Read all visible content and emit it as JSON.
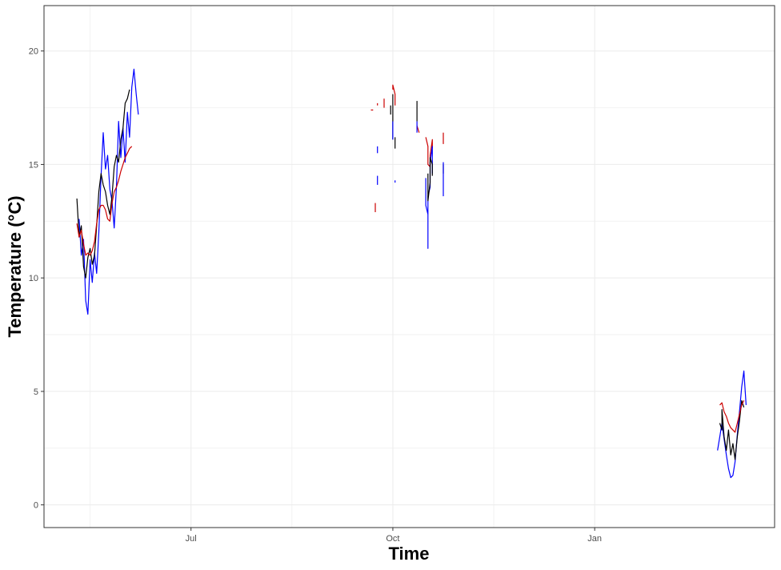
{
  "chart_data": {
    "type": "line",
    "title": "",
    "xlabel": "Time",
    "ylabel": "Temperature (°C)",
    "ylim": [
      -1,
      22
    ],
    "xlim": [
      "2019-04-25",
      "2020-03-23"
    ],
    "x_ticks": [
      {
        "date": "2019-07-01",
        "label": "Jul"
      },
      {
        "date": "2019-10-01",
        "label": "Oct"
      },
      {
        "date": "2020-01-01",
        "label": "Jan"
      }
    ],
    "x_minor_ticks": [
      "2019-05-16",
      "2019-08-16",
      "2019-11-16"
    ],
    "y_ticks": [
      0,
      5,
      10,
      15,
      20
    ],
    "y_minor_ticks": [
      2.5,
      7.5,
      12.5,
      17.5
    ],
    "grid": true,
    "legend": "none",
    "colors": {
      "blue_series": "#0000ff",
      "black_series": "#000000",
      "red_series": "#cc0000"
    },
    "series": [
      {
        "color": "blue",
        "points": [
          [
            "2019-05-11",
            12.6
          ],
          [
            "2019-05-12",
            11.0
          ],
          [
            "2019-05-13",
            11.7
          ],
          [
            "2019-05-14",
            9.0
          ],
          [
            "2019-05-15",
            8.4
          ],
          [
            "2019-05-16",
            10.8
          ],
          [
            "2019-05-17",
            9.8
          ],
          [
            "2019-05-18",
            11.1
          ],
          [
            "2019-05-19",
            10.2
          ],
          [
            "2019-05-20",
            12.0
          ],
          [
            "2019-05-21",
            14.5
          ],
          [
            "2019-05-22",
            16.4
          ],
          [
            "2019-05-23",
            14.8
          ],
          [
            "2019-05-24",
            15.4
          ],
          [
            "2019-05-25",
            13.9
          ],
          [
            "2019-05-26",
            13.4
          ],
          [
            "2019-05-27",
            12.2
          ],
          [
            "2019-05-28",
            14.0
          ],
          [
            "2019-05-29",
            16.9
          ],
          [
            "2019-05-30",
            15.3
          ],
          [
            "2019-05-31",
            16.6
          ],
          [
            "2019-06-01",
            15.1
          ],
          [
            "2019-06-02",
            17.3
          ],
          [
            "2019-06-03",
            16.2
          ],
          [
            "2019-06-04",
            18.4
          ],
          [
            "2019-06-05",
            19.2
          ],
          [
            "2019-06-06",
            18.1
          ],
          [
            "2019-06-07",
            17.2
          ]
        ]
      },
      {
        "color": "black",
        "points": [
          [
            "2019-05-10",
            13.5
          ],
          [
            "2019-05-11",
            11.8
          ],
          [
            "2019-05-12",
            12.3
          ],
          [
            "2019-05-13",
            10.5
          ],
          [
            "2019-05-14",
            10.0
          ],
          [
            "2019-05-15",
            10.9
          ],
          [
            "2019-05-16",
            11.3
          ],
          [
            "2019-05-17",
            10.6
          ],
          [
            "2019-05-18",
            11.0
          ],
          [
            "2019-05-19",
            12.3
          ],
          [
            "2019-05-20",
            13.8
          ],
          [
            "2019-05-21",
            14.6
          ],
          [
            "2019-05-22",
            14.1
          ],
          [
            "2019-05-23",
            13.8
          ],
          [
            "2019-05-24",
            13.2
          ],
          [
            "2019-05-25",
            12.8
          ],
          [
            "2019-05-26",
            13.6
          ],
          [
            "2019-05-27",
            14.9
          ],
          [
            "2019-05-28",
            15.4
          ],
          [
            "2019-05-29",
            15.1
          ],
          [
            "2019-05-30",
            16.1
          ],
          [
            "2019-05-31",
            16.6
          ],
          [
            "2019-06-01",
            17.7
          ],
          [
            "2019-06-02",
            17.9
          ],
          [
            "2019-06-03",
            18.3
          ]
        ]
      },
      {
        "color": "red",
        "points": [
          [
            "2019-05-10",
            12.4
          ],
          [
            "2019-05-11",
            11.8
          ],
          [
            "2019-05-12",
            12.1
          ],
          [
            "2019-05-13",
            11.5
          ],
          [
            "2019-05-14",
            11.0
          ],
          [
            "2019-05-15",
            11.1
          ],
          [
            "2019-05-16",
            11.0
          ],
          [
            "2019-05-17",
            11.2
          ],
          [
            "2019-05-18",
            11.6
          ],
          [
            "2019-05-19",
            12.4
          ],
          [
            "2019-05-20",
            13.0
          ],
          [
            "2019-05-21",
            13.2
          ],
          [
            "2019-05-22",
            13.2
          ],
          [
            "2019-05-23",
            13.0
          ],
          [
            "2019-05-24",
            12.6
          ],
          [
            "2019-05-25",
            12.5
          ],
          [
            "2019-05-26",
            13.3
          ],
          [
            "2019-05-27",
            13.8
          ],
          [
            "2019-05-28",
            14.0
          ],
          [
            "2019-05-29",
            14.3
          ],
          [
            "2019-05-30",
            14.7
          ],
          [
            "2019-05-31",
            15.0
          ],
          [
            "2019-06-01",
            15.3
          ],
          [
            "2019-06-02",
            15.5
          ],
          [
            "2019-06-03",
            15.7
          ],
          [
            "2019-06-04",
            15.8
          ]
        ]
      },
      {
        "color": "red",
        "points": [
          [
            "2019-09-21",
            17.4
          ],
          [
            "2019-09-22",
            17.4
          ]
        ]
      },
      {
        "color": "red",
        "points": [
          [
            "2019-09-24",
            17.7
          ],
          [
            "2019-09-24",
            17.6
          ]
        ]
      },
      {
        "color": "red",
        "points": [
          [
            "2019-09-27",
            17.9
          ],
          [
            "2019-09-27",
            17.5
          ]
        ]
      },
      {
        "color": "red",
        "points": [
          [
            "2019-09-23",
            13.3
          ],
          [
            "2019-09-23",
            12.9
          ]
        ]
      },
      {
        "color": "red",
        "points": [
          [
            "2019-10-01",
            18.3
          ],
          [
            "2019-10-01",
            18.5
          ],
          [
            "2019-10-02",
            18.1
          ],
          [
            "2019-10-02",
            17.6
          ]
        ]
      },
      {
        "color": "black",
        "points": [
          [
            "2019-10-01",
            18.1
          ],
          [
            "2019-10-01",
            16.1
          ]
        ]
      },
      {
        "color": "black",
        "points": [
          [
            "2019-09-30",
            17.6
          ],
          [
            "2019-09-30",
            17.2
          ]
        ]
      },
      {
        "color": "black",
        "points": [
          [
            "2019-10-02",
            16.2
          ],
          [
            "2019-10-02",
            15.7
          ]
        ]
      },
      {
        "color": "blue",
        "points": [
          [
            "2019-10-01",
            16.9
          ],
          [
            "2019-10-01",
            16.1
          ]
        ]
      },
      {
        "color": "blue",
        "points": [
          [
            "2019-10-02",
            14.3
          ],
          [
            "2019-10-02",
            14.2
          ]
        ]
      },
      {
        "color": "blue",
        "points": [
          [
            "2019-09-24",
            14.1
          ],
          [
            "2019-09-24",
            14.5
          ]
        ]
      },
      {
        "color": "blue",
        "points": [
          [
            "2019-09-24",
            15.5
          ],
          [
            "2019-09-24",
            15.8
          ]
        ]
      },
      {
        "color": "black",
        "points": [
          [
            "2019-10-12",
            17.8
          ],
          [
            "2019-10-12",
            16.9
          ]
        ]
      },
      {
        "color": "red",
        "points": [
          [
            "2019-10-12",
            16.7
          ],
          [
            "2019-10-13",
            16.4
          ]
        ]
      },
      {
        "color": "blue",
        "points": [
          [
            "2019-10-12",
            16.9
          ],
          [
            "2019-10-12",
            16.4
          ]
        ]
      },
      {
        "color": "red",
        "points": [
          [
            "2019-10-16",
            16.2
          ],
          [
            "2019-10-17",
            15.8
          ],
          [
            "2019-10-17",
            15.0
          ],
          [
            "2019-10-18",
            14.9
          ],
          [
            "2019-10-18",
            15.4
          ],
          [
            "2019-10-19",
            16.1
          ],
          [
            "2019-10-19",
            15.7
          ]
        ]
      },
      {
        "color": "blue",
        "points": [
          [
            "2019-10-16",
            14.4
          ],
          [
            "2019-10-16",
            13.2
          ],
          [
            "2019-10-17",
            12.8
          ],
          [
            "2019-10-17",
            11.3
          ],
          [
            "2019-10-17",
            13.6
          ],
          [
            "2019-10-18",
            14.0
          ],
          [
            "2019-10-18",
            15.1
          ],
          [
            "2019-10-19",
            15.8
          ],
          [
            "2019-10-19",
            14.6
          ]
        ]
      },
      {
        "color": "black",
        "points": [
          [
            "2019-10-17",
            14.6
          ],
          [
            "2019-10-17",
            13.4
          ],
          [
            "2019-10-18",
            14.2
          ],
          [
            "2019-10-18",
            15.3
          ],
          [
            "2019-10-19",
            15.0
          ],
          [
            "2019-10-19",
            14.5
          ]
        ]
      },
      {
        "color": "red",
        "points": [
          [
            "2019-10-24",
            16.4
          ],
          [
            "2019-10-24",
            15.9
          ]
        ]
      },
      {
        "color": "black",
        "points": [
          [
            "2019-10-24",
            15.0
          ],
          [
            "2019-10-24",
            14.6
          ]
        ]
      },
      {
        "color": "blue",
        "points": [
          [
            "2019-10-24",
            15.1
          ],
          [
            "2019-10-24",
            13.6
          ]
        ]
      },
      {
        "color": "blue",
        "points": [
          [
            "2020-02-26",
            2.4
          ],
          [
            "2020-02-27",
            3.0
          ],
          [
            "2020-02-28",
            3.6
          ],
          [
            "2020-02-29",
            2.9
          ],
          [
            "2020-03-01",
            2.2
          ],
          [
            "2020-03-02",
            1.6
          ],
          [
            "2020-03-03",
            1.2
          ],
          [
            "2020-03-04",
            1.3
          ],
          [
            "2020-03-05",
            1.9
          ],
          [
            "2020-03-06",
            3.1
          ],
          [
            "2020-03-07",
            4.1
          ],
          [
            "2020-03-08",
            5.2
          ],
          [
            "2020-03-09",
            5.9
          ],
          [
            "2020-03-10",
            4.4
          ]
        ]
      },
      {
        "color": "black",
        "points": [
          [
            "2020-02-27",
            3.6
          ],
          [
            "2020-02-28",
            3.3
          ],
          [
            "2020-02-28",
            4.2
          ],
          [
            "2020-02-29",
            3.0
          ],
          [
            "2020-03-01",
            2.4
          ],
          [
            "2020-03-02",
            3.3
          ],
          [
            "2020-03-03",
            2.2
          ],
          [
            "2020-03-04",
            2.7
          ],
          [
            "2020-03-05",
            2.0
          ],
          [
            "2020-03-06",
            3.0
          ],
          [
            "2020-03-07",
            3.7
          ],
          [
            "2020-03-08",
            4.6
          ],
          [
            "2020-03-09",
            4.3
          ]
        ]
      },
      {
        "color": "red",
        "points": [
          [
            "2020-02-27",
            4.4
          ],
          [
            "2020-02-28",
            4.5
          ],
          [
            "2020-02-29",
            4.1
          ],
          [
            "2020-03-01",
            3.9
          ],
          [
            "2020-03-02",
            3.6
          ],
          [
            "2020-03-03",
            3.4
          ],
          [
            "2020-03-04",
            3.3
          ],
          [
            "2020-03-05",
            3.2
          ],
          [
            "2020-03-06",
            3.6
          ],
          [
            "2020-03-07",
            4.0
          ],
          [
            "2020-03-08",
            4.4
          ],
          [
            "2020-03-09",
            4.6
          ]
        ]
      }
    ]
  }
}
